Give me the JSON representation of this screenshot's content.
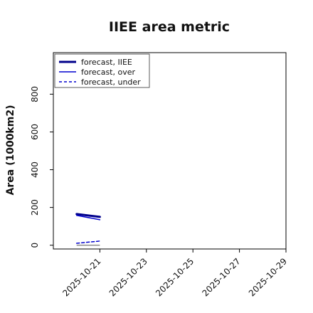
{
  "chart_data": {
    "type": "line",
    "title": "IIEE area metric",
    "xlabel": "",
    "ylabel": "Area (1000km2)",
    "x_ticks": [
      "2025-10-21",
      "2025-10-23",
      "2025-10-25",
      "2025-10-27",
      "2025-10-29"
    ],
    "highlight_tick": "2025-10-21",
    "highlight_color": "#2e8b2e",
    "xlim": [
      "2025-10-19",
      "2025-10-29"
    ],
    "ylim": [
      -20,
      1020
    ],
    "y_ticks": [
      0,
      200,
      400,
      600,
      800
    ],
    "grid": false,
    "legend_position": "upper-left",
    "series": [
      {
        "name": "forecast, IIEE",
        "color": "#00008b",
        "style": "solid",
        "width": 3,
        "x": [
          "2025-10-20",
          "2025-10-21"
        ],
        "y": [
          165,
          150
        ]
      },
      {
        "name": "forecast, over",
        "color": "#0000cd",
        "style": "solid",
        "width": 1.5,
        "x": [
          "2025-10-20",
          "2025-10-21"
        ],
        "y": [
          158,
          135
        ]
      },
      {
        "name": "forecast, under",
        "color": "#0000cd",
        "style": "dashed",
        "width": 1.5,
        "x": [
          "2025-10-20",
          "2025-10-21"
        ],
        "y": [
          10,
          22
        ]
      }
    ],
    "extra_lines": [
      {
        "color": "#555555",
        "style": "solid",
        "width": 1,
        "x": [
          "2025-10-20",
          "2025-10-21"
        ],
        "y": [
          0,
          0
        ]
      }
    ]
  }
}
